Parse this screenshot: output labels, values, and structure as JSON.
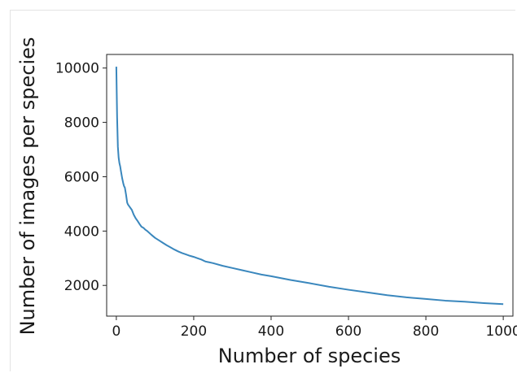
{
  "chart_data": {
    "type": "line",
    "title": "",
    "xlabel": "Number of species",
    "ylabel": "Number of images per species",
    "xlim": [
      -25,
      1025
    ],
    "ylim": [
      870,
      10500
    ],
    "xticks": [
      0,
      200,
      400,
      600,
      800,
      1000
    ],
    "yticks": [
      2000,
      4000,
      6000,
      8000,
      10000
    ],
    "grid": false,
    "legend": "none",
    "series": [
      {
        "color": "#3a87bd",
        "x": [
          0,
          2,
          4,
          6,
          8,
          10,
          12,
          15,
          18,
          20,
          22,
          25,
          28,
          30,
          35,
          40,
          45,
          50,
          55,
          60,
          65,
          70,
          75,
          80,
          90,
          100,
          110,
          120,
          130,
          140,
          150,
          160,
          170,
          180,
          190,
          200,
          210,
          220,
          230,
          240,
          250,
          275,
          300,
          325,
          350,
          375,
          400,
          450,
          500,
          550,
          600,
          650,
          700,
          750,
          800,
          850,
          900,
          950,
          1000
        ],
        "y": [
          10050,
          8200,
          7100,
          6700,
          6500,
          6380,
          6200,
          5950,
          5750,
          5650,
          5600,
          5350,
          5050,
          4980,
          4880,
          4780,
          4600,
          4470,
          4370,
          4260,
          4160,
          4120,
          4050,
          4000,
          3870,
          3750,
          3660,
          3570,
          3480,
          3400,
          3320,
          3250,
          3190,
          3140,
          3090,
          3050,
          3000,
          2950,
          2880,
          2850,
          2820,
          2720,
          2640,
          2560,
          2480,
          2400,
          2340,
          2200,
          2080,
          1950,
          1840,
          1740,
          1640,
          1560,
          1500,
          1440,
          1400,
          1350,
          1310
        ]
      }
    ]
  }
}
